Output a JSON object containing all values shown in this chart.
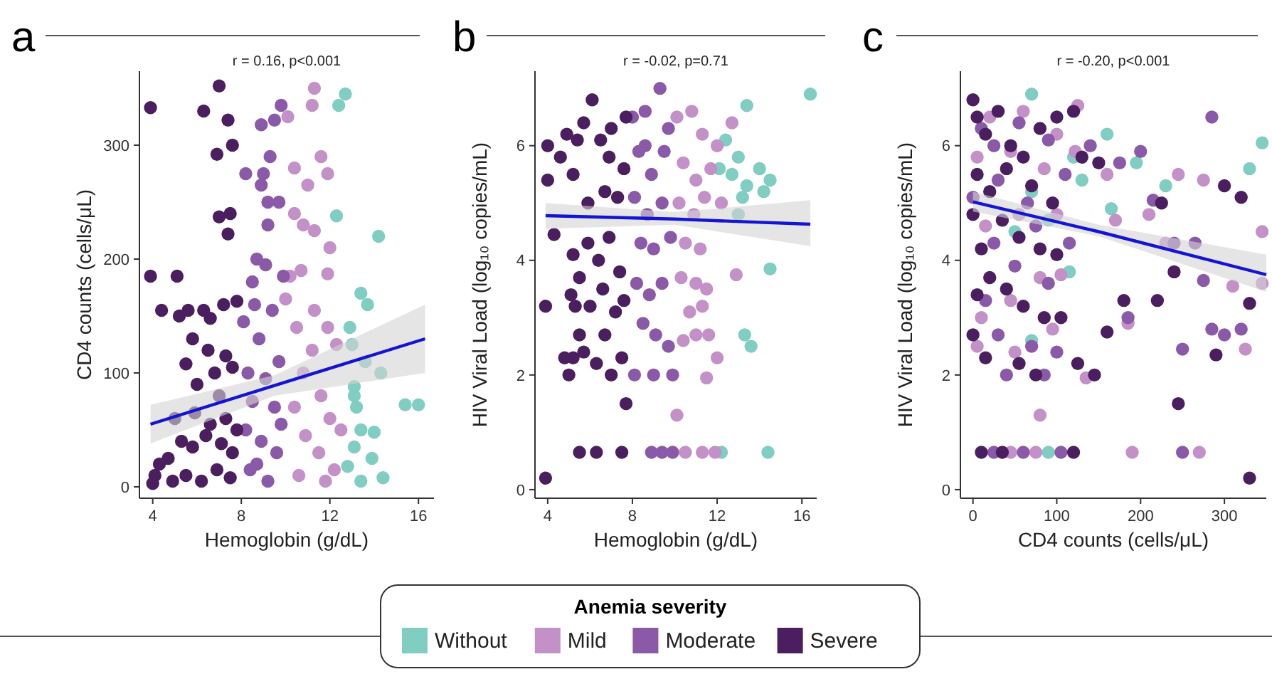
{
  "chart_data": [
    {
      "type": "scatter",
      "title": "a",
      "subtitle": "r = 0.16, p<0.001",
      "xlabel": "Hemoglobin (g/dL)",
      "ylabel": "CD4 counts (cells/μL)",
      "xlim": [
        3.4,
        16.7
      ],
      "ylim": [
        -10,
        365
      ],
      "xticks": [
        4,
        8,
        12,
        16
      ],
      "yticks": [
        0,
        100,
        200,
        300
      ],
      "marker": "circle",
      "legend": "bottom",
      "legend_title": "Anemia severity",
      "series": [
        {
          "name": "Without",
          "color": "#80cdc1",
          "x": [
            12.7,
            12.4,
            12.3,
            14.2,
            13.4,
            13.7,
            12.9,
            13.0,
            13.6,
            14.3,
            13.1,
            13.2,
            15.4,
            16.0,
            13.4,
            14.0,
            13.1,
            13.9,
            12.8,
            13.4,
            14.4,
            13.1
          ],
          "values": [
            345,
            335,
            238,
            220,
            170,
            160,
            140,
            125,
            110,
            100,
            88,
            70,
            72,
            72,
            50,
            48,
            35,
            25,
            18,
            5,
            8,
            80
          ]
        },
        {
          "name": "Mild",
          "color": "#c391c8",
          "x": [
            11.3,
            11.2,
            10.1,
            11.6,
            10.4,
            11.0,
            11.9,
            10.4,
            10.8,
            11.3,
            12.0,
            10.2,
            10.7,
            11.9,
            10.0,
            11.3,
            11.9,
            10.5,
            11.2,
            10.8,
            12.3,
            11.6,
            10.4,
            12.0,
            10.9,
            11.5,
            12.2,
            10.6,
            11.8,
            12.5
          ],
          "values": [
            350,
            335,
            325,
            290,
            280,
            265,
            275,
            240,
            230,
            225,
            210,
            185,
            190,
            187,
            165,
            155,
            140,
            140,
            120,
            100,
            125,
            80,
            70,
            60,
            45,
            30,
            15,
            10,
            5,
            50
          ]
        },
        {
          "name": "Moderate",
          "color": "#8a5aa8",
          "x": [
            9.8,
            8.9,
            9.5,
            9.3,
            9.0,
            8.2,
            8.9,
            9.2,
            9.7,
            9.2,
            8.7,
            9.1,
            8.5,
            9.9,
            8.6,
            9.4,
            8.1,
            8.8,
            9.7,
            8.3,
            9.1,
            8.5,
            9.5,
            8.2,
            8.9,
            9.6,
            8.4,
            9.2,
            9.8,
            8.7
          ],
          "values": [
            335,
            318,
            322,
            290,
            275,
            275,
            265,
            250,
            250,
            230,
            200,
            195,
            180,
            185,
            160,
            155,
            145,
            130,
            110,
            100,
            95,
            75,
            70,
            50,
            40,
            30,
            15,
            5,
            55,
            20
          ]
        },
        {
          "name": "Severe",
          "color": "#4b1f5f",
          "x": [
            3.9,
            7.0,
            6.3,
            7.4,
            7.6,
            6.9,
            7.0,
            7.5,
            7.4,
            3.9,
            5.1,
            4.4,
            5.2,
            5.6,
            6.3,
            6.6,
            7.2,
            7.8,
            5.8,
            6.5,
            7.3,
            5.5,
            6.8,
            7.6,
            6.0,
            7.0,
            5.0,
            4.1,
            4.3,
            4.7,
            4.0,
            5.3,
            5.8,
            6.4,
            7.1,
            7.6,
            5.5,
            6.2,
            6.9,
            7.5,
            5.9,
            6.6,
            7.3,
            4.9,
            7.8
          ],
          "values": [
            333,
            352,
            330,
            322,
            300,
            292,
            237,
            240,
            222,
            185,
            185,
            155,
            150,
            155,
            155,
            148,
            160,
            163,
            130,
            120,
            115,
            108,
            100,
            105,
            90,
            80,
            60,
            10,
            20,
            25,
            3,
            40,
            35,
            45,
            38,
            30,
            10,
            5,
            15,
            8,
            65,
            55,
            60,
            5,
            50
          ]
        },
        {
          "type": "line",
          "marker": "none",
          "color": "#1414d2",
          "x": [
            3.9,
            9.5,
            16.3
          ],
          "values": [
            55,
            89,
            130
          ],
          "lower": [
            38,
            80,
            100
          ],
          "upper": [
            72,
            98,
            160
          ]
        }
      ]
    },
    {
      "type": "scatter",
      "title": "b",
      "subtitle": "r = -0.02, p=0.71",
      "xlabel": "Hemoglobin (g/dL)",
      "ylabel": "HIV Viral Load (log₁₀ copies/mL)",
      "xlim": [
        3.4,
        16.7
      ],
      "ylim": [
        -0.15,
        7.3
      ],
      "xticks": [
        4,
        8,
        12,
        16
      ],
      "yticks": [
        0,
        2,
        4,
        6
      ],
      "marker": "circle",
      "series": [
        {
          "color": "#80cdc1",
          "x": [
            13.4,
            12.4,
            13.0,
            12.7,
            13.4,
            14.0,
            14.5,
            13.2,
            14.2,
            13.0,
            14.5,
            13.3,
            13.6,
            12.2,
            14.4,
            16.4,
            12.1
          ],
          "values": [
            6.7,
            6.1,
            5.8,
            5.5,
            5.3,
            5.6,
            5.4,
            5.1,
            5.2,
            4.8,
            3.85,
            2.7,
            2.5,
            0.65,
            0.65,
            6.9,
            5.6
          ]
        },
        {
          "color": "#c391c8",
          "x": [
            10.1,
            10.8,
            11.3,
            12.0,
            10.4,
            11.0,
            11.7,
            10.2,
            10.9,
            11.4,
            12.2,
            10.5,
            11.2,
            10.3,
            11.0,
            11.5,
            12.9,
            10.7,
            11.3,
            10.4,
            11.0,
            11.6,
            12.0,
            11.5,
            10.1,
            10.5,
            11.3,
            11.9,
            12.7
          ],
          "values": [
            6.5,
            6.6,
            6.2,
            6.0,
            5.7,
            5.4,
            5.6,
            5.0,
            4.8,
            5.1,
            5.0,
            4.3,
            4.2,
            3.7,
            3.6,
            3.5,
            3.75,
            3.1,
            3.2,
            2.6,
            2.7,
            2.7,
            2.3,
            1.95,
            1.3,
            0.65,
            0.65,
            0.65,
            6.4
          ]
        },
        {
          "color": "#8a5aa8",
          "x": [
            8.0,
            8.6,
            9.3,
            9.7,
            8.3,
            8.9,
            9.5,
            8.1,
            8.7,
            9.4,
            8.4,
            9.0,
            9.8,
            8.2,
            8.8,
            9.4,
            8.5,
            9.1,
            9.7,
            8.1,
            9.0,
            9.9,
            8.9,
            9.4,
            9.9,
            8.6
          ],
          "values": [
            6.5,
            6.6,
            7.0,
            6.3,
            5.9,
            5.5,
            5.9,
            5.1,
            4.8,
            5.0,
            4.3,
            4.2,
            4.4,
            3.6,
            3.4,
            3.6,
            2.9,
            2.7,
            2.5,
            2.0,
            2.0,
            2.0,
            0.65,
            0.65,
            0.65,
            6.0
          ]
        },
        {
          "color": "#4b1f5f",
          "x": [
            3.9,
            3.9,
            4.0,
            4.0,
            4.3,
            4.6,
            4.9,
            5.2,
            5.4,
            5.7,
            6.1,
            6.5,
            6.9,
            7.3,
            7.7,
            5.2,
            5.5,
            5.9,
            6.4,
            6.9,
            7.4,
            5.1,
            5.3,
            6.0,
            6.6,
            7.2,
            7.6,
            4.8,
            5.2,
            5.5,
            5.7,
            6.3,
            6.7,
            7.0,
            7.5,
            5.0,
            7.7,
            5.5,
            6.3,
            7.5,
            6.7,
            7.0,
            5.9,
            7.6
          ],
          "values": [
            0.2,
            3.2,
            5.4,
            6.0,
            4.45,
            5.8,
            6.2,
            5.5,
            6.1,
            6.4,
            6.8,
            6.1,
            5.8,
            5.1,
            6.5,
            4.1,
            3.7,
            4.3,
            4.0,
            4.4,
            3.8,
            3.4,
            3.2,
            3.2,
            3.5,
            3.1,
            3.3,
            2.3,
            2.3,
            2.7,
            2.4,
            2.2,
            2.7,
            2.0,
            2.3,
            2.0,
            1.5,
            0.65,
            0.65,
            0.65,
            5.2,
            6.3,
            5.0,
            5.6
          ]
        },
        {
          "type": "line",
          "marker": "none",
          "color": "#1414d2",
          "x": [
            3.9,
            10,
            16.4
          ],
          "values": [
            4.78,
            4.72,
            4.63
          ],
          "lower": [
            4.55,
            4.62,
            4.25
          ],
          "upper": [
            5.0,
            4.84,
            5.05
          ]
        }
      ]
    },
    {
      "type": "scatter",
      "title": "c",
      "subtitle": "r = -0.20, p<0.001",
      "xlabel": "CD4 counts (cells/μL)",
      "ylabel": "HIV Viral Load (log₁₀ copies/mL)",
      "xlim": [
        -15,
        350
      ],
      "ylim": [
        -0.15,
        7.3
      ],
      "xticks": [
        0,
        100,
        200,
        300
      ],
      "yticks": [
        0,
        2,
        4,
        6
      ],
      "marker": "circle",
      "series": [
        {
          "color": "#80cdc1",
          "x": [
            70,
            160,
            120,
            70,
            130,
            165,
            195,
            230,
            345,
            330,
            90,
            50,
            90,
            70,
            115
          ],
          "values": [
            6.9,
            6.2,
            5.8,
            5.2,
            5.4,
            4.9,
            5.7,
            5.3,
            6.05,
            5.6,
            4.7,
            4.5,
            0.65,
            2.6,
            3.8
          ]
        },
        {
          "color": "#c391c8",
          "x": [
            20,
            60,
            100,
            125,
            5,
            45,
            85,
            122,
            160,
            15,
            55,
            100,
            170,
            10,
            45,
            80,
            105,
            5,
            50,
            95,
            135,
            80,
            45,
            75,
            190,
            270,
            185,
            230,
            245,
            275,
            310,
            325,
            345,
            345,
            210
          ],
          "values": [
            6.5,
            6.6,
            6.2,
            6.7,
            5.8,
            5.9,
            5.6,
            5.9,
            5.5,
            4.6,
            4.8,
            4.8,
            4.7,
            3.0,
            3.3,
            3.7,
            3.75,
            2.5,
            2.4,
            2.8,
            1.95,
            1.3,
            0.65,
            0.65,
            0.65,
            0.65,
            2.9,
            4.3,
            5.5,
            5.4,
            3.55,
            2.45,
            3.6,
            4.5,
            4.8
          ]
        },
        {
          "color": "#8a5aa8",
          "x": [
            10,
            25,
            55,
            90,
            140,
            0,
            30,
            65,
            110,
            175,
            200,
            25,
            75,
            115,
            15,
            50,
            90,
            30,
            70,
            100,
            40,
            85,
            25,
            60,
            105,
            250,
            285,
            285,
            300,
            320,
            250,
            265,
            275,
            240,
            215,
            185
          ],
          "values": [
            6.3,
            6.0,
            6.4,
            6.1,
            6.0,
            5.1,
            5.4,
            5.0,
            5.5,
            5.7,
            5.9,
            4.3,
            4.6,
            4.3,
            3.3,
            3.9,
            3.6,
            2.7,
            2.5,
            2.4,
            2.0,
            2.0,
            0.65,
            0.65,
            0.65,
            0.65,
            6.5,
            2.8,
            2.7,
            2.8,
            2.45,
            4.3,
            3.65,
            4.3,
            5.05,
            3.0
          ]
        },
        {
          "color": "#4b1f5f",
          "x": [
            0,
            5,
            15,
            30,
            45,
            60,
            80,
            100,
            120,
            5,
            20,
            40,
            70,
            95,
            130,
            150,
            0,
            10,
            35,
            55,
            80,
            100,
            20,
            5,
            40,
            60,
            85,
            105,
            0,
            15,
            55,
            75,
            125,
            10,
            35,
            120,
            180,
            220,
            225,
            240,
            245,
            290,
            300,
            320,
            330,
            330,
            160,
            145
          ],
          "values": [
            6.8,
            6.5,
            6.2,
            6.6,
            6.0,
            5.8,
            6.3,
            6.5,
            6.6,
            5.5,
            5.2,
            5.6,
            5.3,
            5.0,
            5.8,
            5.7,
            4.8,
            4.2,
            4.7,
            4.4,
            4.2,
            4.1,
            3.7,
            3.4,
            3.5,
            3.2,
            3.0,
            3.0,
            2.7,
            2.3,
            2.2,
            2.0,
            2.2,
            0.65,
            0.65,
            0.65,
            3.3,
            3.3,
            5.0,
            3.8,
            1.5,
            2.35,
            5.3,
            5.1,
            3.25,
            0.2,
            2.75,
            2.0
          ]
        },
        {
          "type": "line",
          "marker": "none",
          "color": "#1414d2",
          "x": [
            0,
            150,
            350
          ],
          "values": [
            5.02,
            4.5,
            3.75
          ],
          "lower": [
            4.85,
            4.42,
            3.45
          ],
          "upper": [
            5.2,
            4.62,
            4.1
          ]
        }
      ]
    }
  ]
}
